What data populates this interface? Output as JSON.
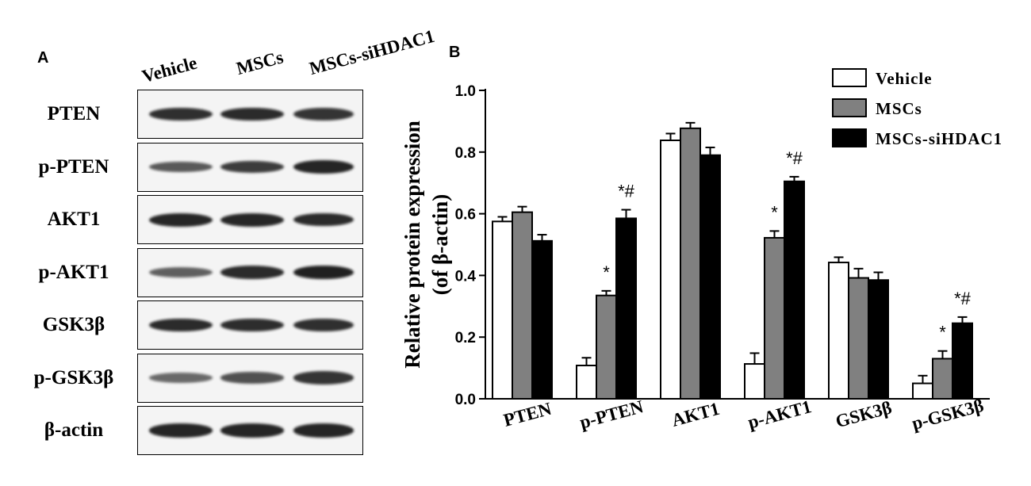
{
  "panel_a": {
    "letter": "A",
    "lanes": [
      "Vehicle",
      "MSCs",
      "MSCs-siHDAC1"
    ],
    "blots": [
      {
        "label": "PTEN",
        "intensity": [
          0.85,
          0.88,
          0.82
        ]
      },
      {
        "label": "p-PTEN",
        "intensity": [
          0.55,
          0.75,
          0.92
        ]
      },
      {
        "label": "AKT1",
        "intensity": [
          0.9,
          0.9,
          0.88
        ]
      },
      {
        "label": "p-AKT1",
        "intensity": [
          0.5,
          0.88,
          0.95
        ]
      },
      {
        "label": "GSK3β",
        "intensity": [
          0.88,
          0.86,
          0.85
        ]
      },
      {
        "label": "p-GSK3β",
        "intensity": [
          0.45,
          0.62,
          0.82
        ]
      },
      {
        "label": "β-actin",
        "intensity": [
          0.92,
          0.92,
          0.92
        ]
      }
    ]
  },
  "panel_b": {
    "letter": "B"
  },
  "chart_data": {
    "type": "bar",
    "title": "",
    "xlabel": "",
    "ylabel": [
      "Relative protein expression",
      "(of β-actin)"
    ],
    "ylim": [
      0,
      1.0
    ],
    "yticks": [
      "0.0",
      "0.2",
      "0.4",
      "0.6",
      "0.8",
      "1.0"
    ],
    "categories": [
      "PTEN",
      "p-PTEN",
      "AKT1",
      "p-AKT1",
      "GSK3β",
      "p-GSK3β"
    ],
    "series": [
      {
        "name": "Vehicle",
        "color": "#ffffff",
        "values": [
          0.575,
          0.108,
          0.838,
          0.113,
          0.442,
          0.05
        ],
        "errors": [
          0.015,
          0.025,
          0.022,
          0.035,
          0.017,
          0.025
        ]
      },
      {
        "name": "MSCs",
        "color": "#808080",
        "values": [
          0.605,
          0.335,
          0.877,
          0.522,
          0.392,
          0.13
        ],
        "errors": [
          0.018,
          0.015,
          0.018,
          0.022,
          0.03,
          0.025
        ]
      },
      {
        "name": "MSCs-siHDAC1",
        "color": "#000000",
        "values": [
          0.512,
          0.585,
          0.79,
          0.705,
          0.385,
          0.245
        ],
        "errors": [
          0.02,
          0.028,
          0.025,
          0.015,
          0.025,
          0.02
        ]
      }
    ],
    "annotations": [
      {
        "category": 1,
        "series": 1,
        "text": "*"
      },
      {
        "category": 1,
        "series": 2,
        "text": "*#"
      },
      {
        "category": 3,
        "series": 1,
        "text": "*"
      },
      {
        "category": 3,
        "series": 2,
        "text": "*#"
      },
      {
        "category": 5,
        "series": 1,
        "text": "*"
      },
      {
        "category": 5,
        "series": 2,
        "text": "*#"
      }
    ],
    "legend": "top-right",
    "grid": false
  }
}
